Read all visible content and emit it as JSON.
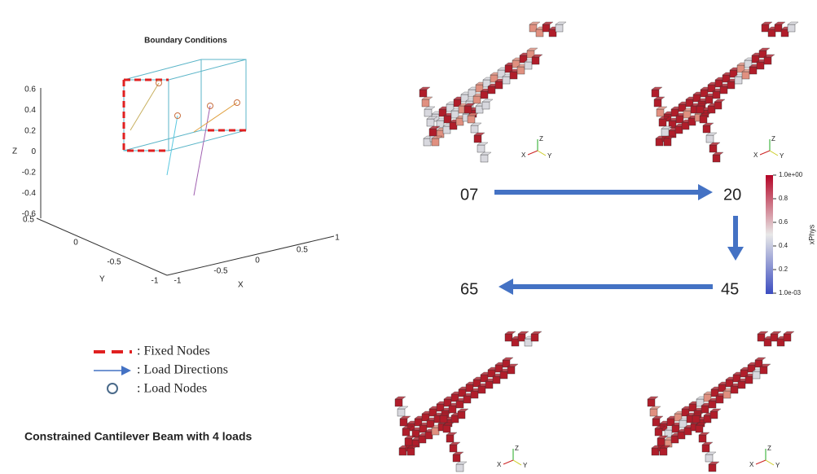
{
  "plot": {
    "title": "Boundary Conditions",
    "z_label": "Z",
    "y_label": "Y",
    "x_label": "X",
    "z_ticks": [
      "0.6",
      "0.4",
      "0.2",
      "0",
      "-0.2",
      "-0.4",
      "-0.6"
    ],
    "y_ticks": [
      "0.5",
      "0",
      "-0.5",
      "-1"
    ],
    "x_ticks": [
      "-1",
      "-0.5",
      "0",
      "0.5",
      "1"
    ]
  },
  "legend": [
    ": Fixed Nodes",
    ": Load Directions",
    ": Load Nodes"
  ],
  "caption": "Constrained Cantilever Beam with 4 loads",
  "iterations": [
    "07",
    "20",
    "45",
    "65"
  ],
  "triad": {
    "z": "Z",
    "x": "X",
    "y": "Y"
  },
  "colorbar": {
    "title": "xPhys",
    "ticks": [
      "1.0e+00",
      "0.8",
      "0.6",
      "0.4",
      "0.2",
      "1.0e-03"
    ]
  }
}
